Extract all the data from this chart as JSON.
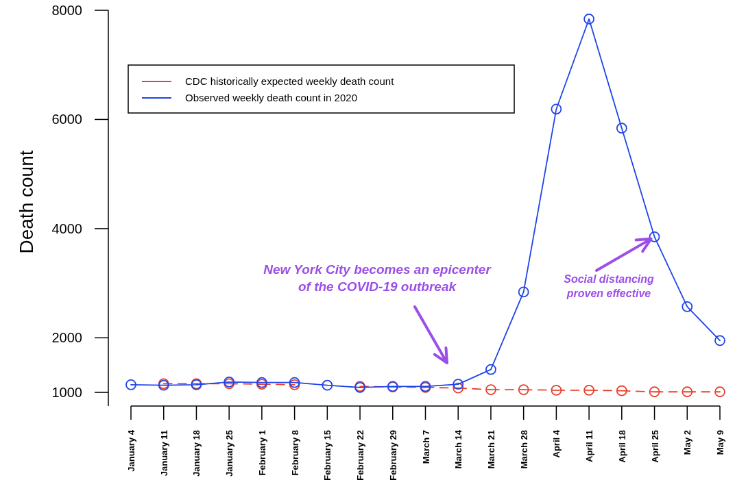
{
  "chart_data": {
    "type": "line",
    "ylabel": "Death count",
    "categories": [
      "January 4",
      "January 11",
      "January 18",
      "January 25",
      "February 1",
      "February 8",
      "February 15",
      "February 22",
      "February 29",
      "March 7",
      "March 14",
      "March 21",
      "March 28",
      "April 4",
      "April 11",
      "April 18",
      "April 25",
      "May 2",
      "May 9"
    ],
    "series": [
      {
        "name": "CDC historically expected weekly death count",
        "color": "#e8402a",
        "line_style": "dashed",
        "values": [
          null,
          1160,
          1160,
          1160,
          1150,
          1140,
          null,
          1110,
          1100,
          1090,
          1080,
          1050,
          1050,
          1040,
          1040,
          1030,
          1010,
          1010,
          1010
        ]
      },
      {
        "name": "Observed weekly death count in 2020",
        "color": "#1f45e8",
        "line_style": "solid",
        "values": [
          1140,
          1130,
          1140,
          1190,
          1180,
          1180,
          1130,
          1090,
          1110,
          1110,
          1150,
          1420,
          2840,
          6190,
          7840,
          5840,
          3850,
          2570,
          1950
        ]
      }
    ],
    "ylim": [
      750,
      8000
    ],
    "yticks": [
      1000,
      2000,
      4000,
      6000,
      8000
    ],
    "marker": "circle",
    "legend": "top left",
    "annotations": [
      "New York City becomes an epicenter\nof the COVID-19 outbreak",
      {
        "text": "Social distancing\nproven effective",
        "x": "April 25",
        "y": 3850
      }
    ]
  }
}
